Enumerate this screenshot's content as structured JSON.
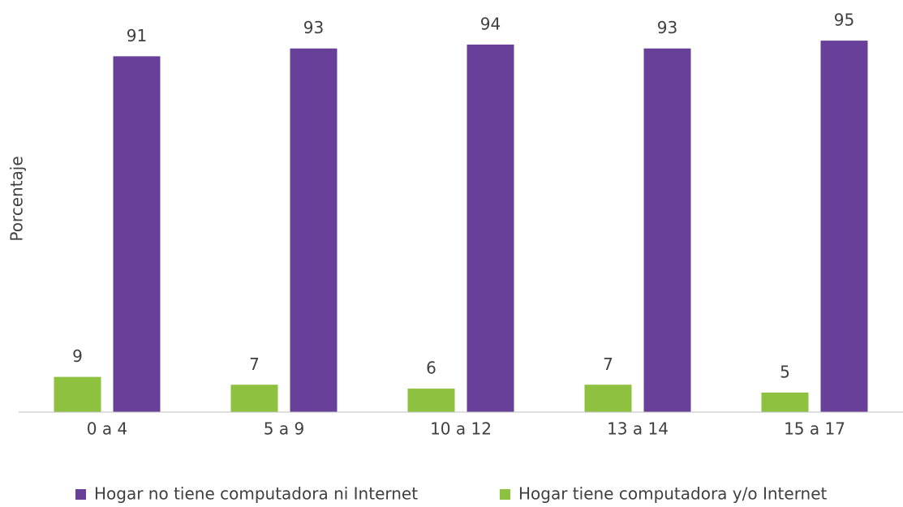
{
  "chart_data": {
    "type": "bar",
    "y_label": "Porcentaje",
    "categories": [
      "0 a 4",
      "5 a 9",
      "10 a 12",
      "13 a 14",
      "15 a 17"
    ],
    "series": [
      {
        "name": "Hogar no tiene computadora ni Internet",
        "color": "#68409a",
        "values": [
          91,
          93,
          94,
          93,
          95
        ]
      },
      {
        "name": "Hogar tiene computadora y/o Internet",
        "color": "#8dc13f",
        "values": [
          9,
          7,
          6,
          7,
          5
        ]
      }
    ],
    "ylim": [
      0,
      100
    ],
    "legend": "bottom"
  }
}
